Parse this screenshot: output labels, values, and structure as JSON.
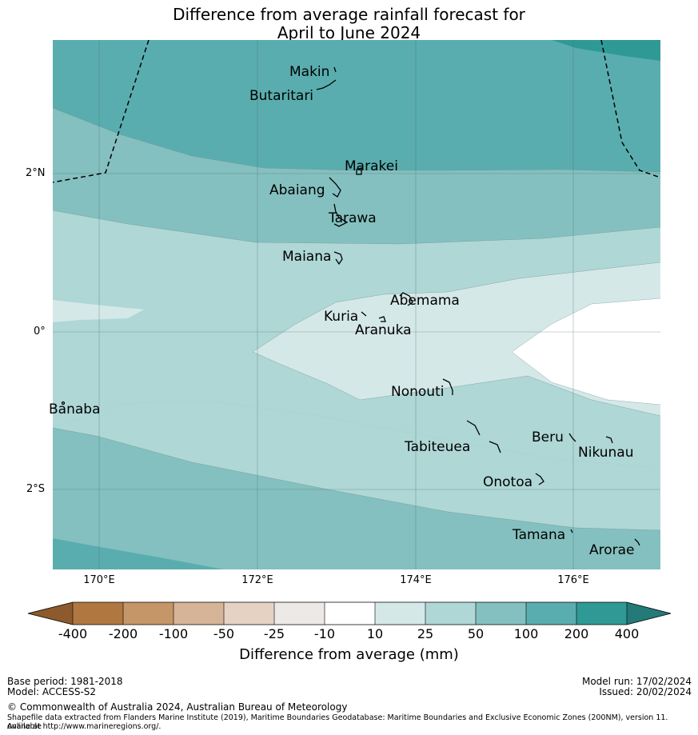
{
  "title": {
    "line1": "Difference from average rainfall forecast for",
    "line2": "April to June 2024"
  },
  "axes": {
    "longitude_labels": [
      "170°E",
      "172°E",
      "174°E",
      "176°E"
    ],
    "latitude_labels": [
      "2°N",
      "0°",
      "2°S"
    ]
  },
  "places": {
    "makin": "Makin",
    "butaritari": "Butaritari",
    "marakei": "Marakei",
    "abaiang": "Abaiang",
    "tarawa": "Tarawa",
    "maiana": "Maiana",
    "abemama": "Abemama",
    "kuria": "Kuria",
    "aranuka": "Aranuka",
    "banaba": "Banaba",
    "nonouti": "Nonouti",
    "beru": "Beru",
    "tabiteuea": "Tabiteuea",
    "nikunau": "Nikunau",
    "onotoa": "Onotoa",
    "tamana": "Tamana",
    "arorae": "Arorae"
  },
  "colorbar": {
    "ticks": [
      "-400",
      "-200",
      "-100",
      "-50",
      "-25",
      "-10",
      "10",
      "25",
      "50",
      "100",
      "200",
      "400"
    ],
    "colors": [
      "#8c5a2d",
      "#b07840",
      "#c49668",
      "#d6b497",
      "#e6d2c3",
      "#ece9e6",
      "#ffffff",
      "#d5e8e8",
      "#aed7d6",
      "#84c0bf",
      "#5aadae",
      "#2f9996",
      "#237a78"
    ],
    "title": "Difference from average (mm)"
  },
  "footer": {
    "base_period": "Base period: 1981-2018",
    "model": "Model: ACCESS-S2",
    "model_run": "Model run: 17/02/2024",
    "issued": "Issued: 20/02/2024",
    "copyright": "© Commonwealth of Australia 2024, Australian Bureau of Meteorology",
    "shapefile_line1": "Shapefile data extracted from Flanders Marine Institute (2019), Maritime Boundaries Geodatabase: Maritime Boundaries and Exclusive Economic Zones (200NM), version 11. Available",
    "shapefile_line2": "online at http://www.marineregions.org/."
  }
}
